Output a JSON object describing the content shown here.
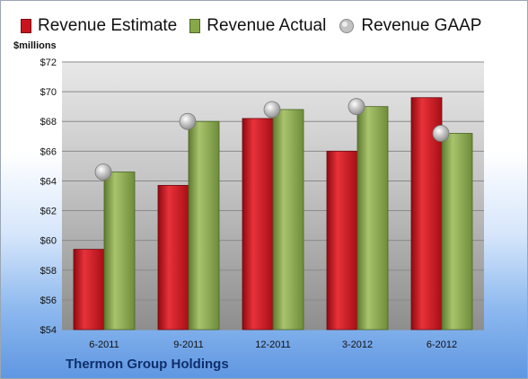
{
  "colors": {
    "estimate": "#c8141c",
    "actual": "#86a84a",
    "gaap": "#b4b4b4"
  },
  "legend": {
    "estimate_label": "Revenue Estimate",
    "actual_label": "Revenue Actual",
    "gaap_label": "Revenue GAAP"
  },
  "unit_label": "$millions",
  "company": "Thermon Group Holdings",
  "chart_data": {
    "type": "bar",
    "categories": [
      "6-2011",
      "9-2011",
      "12-2011",
      "3-2012",
      "6-2012"
    ],
    "series": [
      {
        "name": "Revenue Estimate",
        "values": [
          59.4,
          63.7,
          68.2,
          66.0,
          69.6
        ],
        "style": "bar"
      },
      {
        "name": "Revenue Actual",
        "values": [
          64.6,
          68.0,
          68.8,
          69.0,
          67.2
        ],
        "style": "bar"
      },
      {
        "name": "Revenue GAAP",
        "values": [
          64.6,
          68.0,
          68.8,
          69.0,
          67.2
        ],
        "style": "marker"
      }
    ],
    "y_ticks": [
      "$54",
      "$56",
      "$58",
      "$60",
      "$62",
      "$64",
      "$66",
      "$68",
      "$70",
      "$72"
    ],
    "ylim": [
      54,
      72
    ],
    "ylabel": "$millions",
    "grid": true,
    "legend_position": "top"
  }
}
